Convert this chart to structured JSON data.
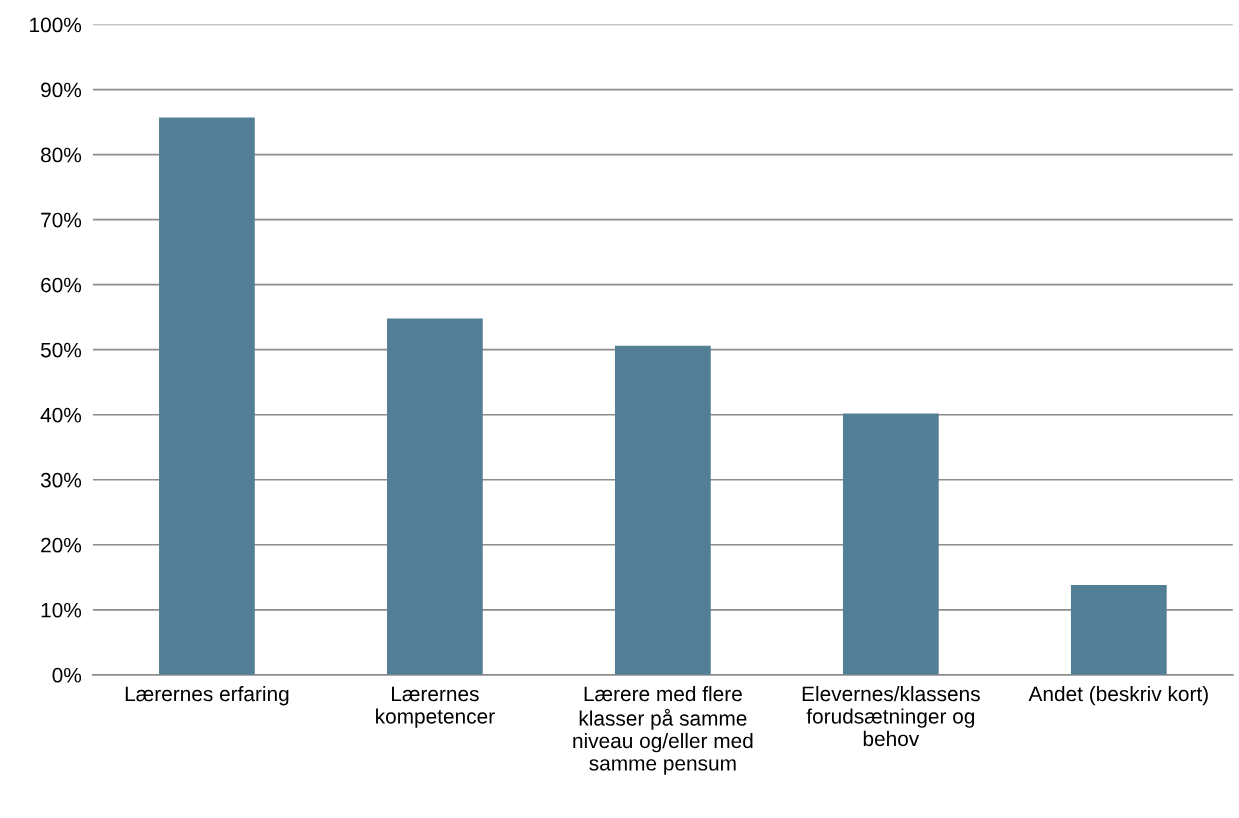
{
  "chart_data": {
    "type": "bar",
    "categories": [
      "Lærernes erfaring",
      "Lærernes\nkompetencer",
      "Lærere med flere\nklasser på samme\nniveau og/eller med\nsamme pensum",
      "Elevernes/klassens\nforudsætninger og\nbehov",
      "Andet (beskriv kort)"
    ],
    "values": [
      85.7,
      54.8,
      50.6,
      40.2,
      13.8
    ],
    "color": "#537f96",
    "ylim": [
      0,
      100
    ],
    "yticks": [
      {
        "value": 0,
        "label": "0%"
      },
      {
        "value": 10,
        "label": "10%"
      },
      {
        "value": 20,
        "label": "20%"
      },
      {
        "value": 30,
        "label": "30%"
      },
      {
        "value": 40,
        "label": "40%"
      },
      {
        "value": 50,
        "label": "50%"
      },
      {
        "value": 60,
        "label": "60%"
      },
      {
        "value": 70,
        "label": "70%"
      },
      {
        "value": 80,
        "label": "80%"
      },
      {
        "value": 90,
        "label": "90%"
      },
      {
        "value": 100,
        "label": "100%"
      }
    ],
    "grid": "y"
  }
}
